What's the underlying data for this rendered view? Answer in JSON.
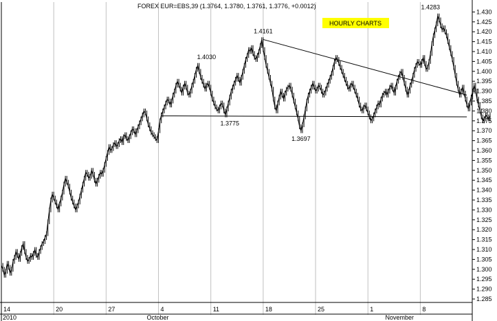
{
  "chart_data": {
    "type": "line",
    "title": "FOREX EUR=EBS,39 (1.3764, 1.3780, 1.3761, 1.3776, +0.0012)",
    "badge": "HOURLY CHARTS",
    "badge_color": "#ffff00",
    "line_color": "#000000",
    "grid": true,
    "y_axis_side": "right",
    "ylim": [
      1.285,
      1.435
    ],
    "y_ticks": [
      "1.285",
      "1.290",
      "1.295",
      "1.300",
      "1.305",
      "1.310",
      "1.315",
      "1.320",
      "1.325",
      "1.330",
      "1.335",
      "1.340",
      "1.345",
      "1.350",
      "1.355",
      "1.360",
      "1.365",
      "1.370",
      "1.375",
      "1.380",
      "1.385",
      "1.390",
      "1.395",
      "1.400",
      "1.405",
      "1.410",
      "1.415",
      "1.420",
      "1.425",
      "1.430"
    ],
    "x_day_ticks": [
      {
        "label": "14",
        "index": 0
      },
      {
        "label": "20",
        "index": 36
      },
      {
        "label": "27",
        "index": 72
      },
      {
        "label": "4",
        "index": 108
      },
      {
        "label": "11",
        "index": 144
      },
      {
        "label": "18",
        "index": 180
      },
      {
        "label": "25",
        "index": 216
      },
      {
        "label": "1",
        "index": 252
      },
      {
        "label": "8",
        "index": 288
      }
    ],
    "x_month_labels": [
      {
        "label": "2010",
        "index": 0
      },
      {
        "label": "October",
        "index": 99
      },
      {
        "label": "November",
        "index": 263
      }
    ],
    "n_points": 320,
    "series": [
      {
        "values": [
          1.302,
          1.3,
          1.297,
          1.299,
          1.303,
          1.301,
          1.298,
          1.3,
          1.304,
          1.306,
          1.309,
          1.307,
          1.305,
          1.308,
          1.311,
          1.313,
          1.309,
          1.306,
          1.304,
          1.305,
          1.307,
          1.306,
          1.308,
          1.31,
          1.307,
          1.306,
          1.309,
          1.311,
          1.313,
          1.314,
          1.316,
          1.318,
          1.324,
          1.33,
          1.335,
          1.338,
          1.336,
          1.334,
          1.332,
          1.33,
          1.333,
          1.336,
          1.339,
          1.343,
          1.346,
          1.344,
          1.342,
          1.339,
          1.336,
          1.334,
          1.332,
          1.33,
          1.332,
          1.334,
          1.337,
          1.34,
          1.343,
          1.346,
          1.349,
          1.348,
          1.346,
          1.347,
          1.35,
          1.348,
          1.345,
          1.343,
          1.345,
          1.347,
          1.349,
          1.348,
          1.35,
          1.353,
          1.356,
          1.359,
          1.362,
          1.36,
          1.361,
          1.363,
          1.364,
          1.362,
          1.363,
          1.365,
          1.366,
          1.364,
          1.367,
          1.368,
          1.366,
          1.365,
          1.367,
          1.369,
          1.371,
          1.37,
          1.368,
          1.37,
          1.372,
          1.374,
          1.376,
          1.378,
          1.38,
          1.379,
          1.376,
          1.373,
          1.371,
          1.369,
          1.368,
          1.367,
          1.366,
          1.365,
          1.37,
          1.375,
          1.378,
          1.38,
          1.382,
          1.384,
          1.386,
          1.385,
          1.383,
          1.385,
          1.388,
          1.39,
          1.393,
          1.395,
          1.393,
          1.391,
          1.389,
          1.392,
          1.394,
          1.392,
          1.389,
          1.388,
          1.39,
          1.393,
          1.395,
          1.398,
          1.401,
          1.403,
          1.4,
          1.397,
          1.395,
          1.393,
          1.391,
          1.393,
          1.394,
          1.392,
          1.389,
          1.386,
          1.384,
          1.382,
          1.381,
          1.38,
          1.382,
          1.384,
          1.383,
          1.38,
          1.378,
          1.381,
          1.384,
          1.387,
          1.39,
          1.392,
          1.394,
          1.396,
          1.398,
          1.396,
          1.394,
          1.397,
          1.4,
          1.403,
          1.406,
          1.408,
          1.411,
          1.41,
          1.412,
          1.409,
          1.407,
          1.406,
          1.408,
          1.41,
          1.413,
          1.416,
          1.411,
          1.407,
          1.403,
          1.4,
          1.397,
          1.394,
          1.391,
          1.386,
          1.382,
          1.38,
          1.384,
          1.387,
          1.39,
          1.388,
          1.386,
          1.389,
          1.391,
          1.392,
          1.393,
          1.391,
          1.388,
          1.385,
          1.382,
          1.379,
          1.376,
          1.372,
          1.37,
          1.373,
          1.377,
          1.381,
          1.385,
          1.388,
          1.39,
          1.392,
          1.394,
          1.392,
          1.39,
          1.391,
          1.393,
          1.392,
          1.39,
          1.388,
          1.389,
          1.391,
          1.393,
          1.395,
          1.397,
          1.399,
          1.402,
          1.405,
          1.407,
          1.406,
          1.404,
          1.402,
          1.4,
          1.398,
          1.396,
          1.394,
          1.392,
          1.391,
          1.393,
          1.394,
          1.392,
          1.39,
          1.388,
          1.386,
          1.383,
          1.381,
          1.38,
          1.382,
          1.383,
          1.381,
          1.379,
          1.377,
          1.375,
          1.376,
          1.378,
          1.38,
          1.382,
          1.384,
          1.383,
          1.386,
          1.388,
          1.389,
          1.39,
          1.388,
          1.39,
          1.392,
          1.393,
          1.391,
          1.389,
          1.392,
          1.395,
          1.397,
          1.399,
          1.4,
          1.397,
          1.394,
          1.391,
          1.388,
          1.39,
          1.393,
          1.395,
          1.398,
          1.401,
          1.403,
          1.405,
          1.404,
          1.403,
          1.405,
          1.407,
          1.404,
          1.401,
          1.402,
          1.405,
          1.409,
          1.414,
          1.418,
          1.421,
          1.424,
          1.428,
          1.426,
          1.423,
          1.421,
          1.422,
          1.42,
          1.418,
          1.415,
          1.412,
          1.409,
          1.406,
          1.402,
          1.398,
          1.394,
          1.391,
          1.388,
          1.39,
          1.392,
          1.389,
          1.386,
          1.383,
          1.381,
          1.384,
          1.387,
          1.39,
          1.393,
          1.39,
          1.386,
          1.383,
          1.38,
          1.377,
          1.375,
          1.376,
          1.378,
          1.377,
          1.376,
          1.3776
        ]
      }
    ],
    "annotations": [
      {
        "text": "1.4030",
        "index": 141,
        "value": 1.403,
        "position": "above"
      },
      {
        "text": "1.4161",
        "index": 180,
        "value": 1.4161,
        "position": "above"
      },
      {
        "text": "1.3775",
        "index": 157,
        "value": 1.3775,
        "position": "below"
      },
      {
        "text": "1.3697",
        "index": 206,
        "value": 1.3697,
        "position": "below"
      },
      {
        "text": "1.4283",
        "index": 295,
        "value": 1.4283,
        "position": "above"
      }
    ],
    "trendlines": [
      {
        "name": "resistance",
        "from": {
          "index": 180,
          "value": 1.4161
        },
        "to": {
          "index": 320,
          "value": 1.388
        }
      },
      {
        "name": "support",
        "from": {
          "index": 110,
          "value": 1.3775
        },
        "to": {
          "index": 320,
          "value": 1.377
        }
      }
    ]
  }
}
